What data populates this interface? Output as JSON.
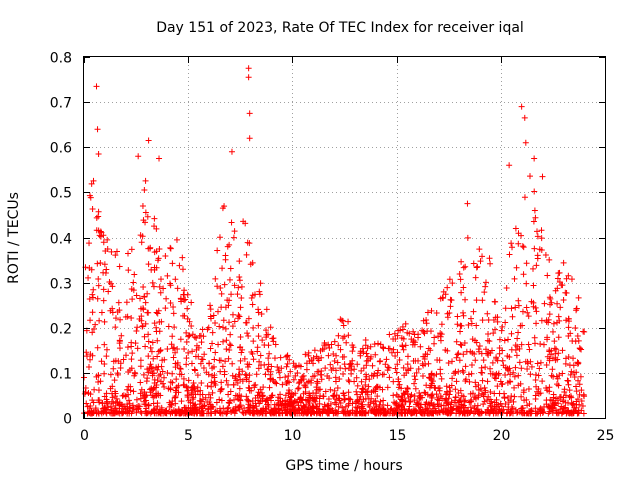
{
  "chart_data": {
    "type": "scatter",
    "title": "Day 151 of 2023, Rate Of TEC Index for receiver iqal",
    "xlabel": "GPS time / hours",
    "ylabel": "ROTI / TECUs",
    "xlim": [
      0,
      25
    ],
    "ylim": [
      0,
      0.8
    ],
    "xticks": [
      0,
      5,
      10,
      15,
      20,
      25
    ],
    "yticks": [
      0,
      0.1,
      0.2,
      0.3,
      0.4,
      0.5,
      0.6,
      0.7,
      0.8
    ],
    "xtick_labels": [
      "0",
      "5",
      "10",
      "15",
      "20",
      "25"
    ],
    "ytick_labels": [
      "0",
      "0.1",
      "0.2",
      "0.3",
      "0.4",
      "0.5",
      "0.6",
      "0.7",
      "0.8"
    ],
    "grid": true,
    "marker": "+",
    "color": "#ff0000",
    "series": [
      {
        "name": "ROTI",
        "activity_envelope": [
          {
            "x": 0.0,
            "y": 0.45
          },
          {
            "x": 0.5,
            "y": 0.55
          },
          {
            "x": 1.0,
            "y": 0.4
          },
          {
            "x": 1.5,
            "y": 0.38
          },
          {
            "x": 2.0,
            "y": 0.35
          },
          {
            "x": 2.5,
            "y": 0.45
          },
          {
            "x": 3.0,
            "y": 0.55
          },
          {
            "x": 3.5,
            "y": 0.42
          },
          {
            "x": 4.0,
            "y": 0.38
          },
          {
            "x": 4.5,
            "y": 0.42
          },
          {
            "x": 5.0,
            "y": 0.28
          },
          {
            "x": 5.5,
            "y": 0.2
          },
          {
            "x": 6.0,
            "y": 0.25
          },
          {
            "x": 6.5,
            "y": 0.45
          },
          {
            "x": 7.0,
            "y": 0.55
          },
          {
            "x": 7.5,
            "y": 0.48
          },
          {
            "x": 8.0,
            "y": 0.4
          },
          {
            "x": 8.5,
            "y": 0.3
          },
          {
            "x": 9.0,
            "y": 0.2
          },
          {
            "x": 9.5,
            "y": 0.14
          },
          {
            "x": 10.0,
            "y": 0.14
          },
          {
            "x": 11.0,
            "y": 0.15
          },
          {
            "x": 12.0,
            "y": 0.18
          },
          {
            "x": 12.5,
            "y": 0.25
          },
          {
            "x": 13.0,
            "y": 0.18
          },
          {
            "x": 14.0,
            "y": 0.17
          },
          {
            "x": 15.0,
            "y": 0.2
          },
          {
            "x": 16.0,
            "y": 0.22
          },
          {
            "x": 17.0,
            "y": 0.26
          },
          {
            "x": 18.0,
            "y": 0.35
          },
          {
            "x": 18.5,
            "y": 0.42
          },
          {
            "x": 19.0,
            "y": 0.4
          },
          {
            "x": 19.5,
            "y": 0.36
          },
          {
            "x": 20.0,
            "y": 0.18
          },
          {
            "x": 20.5,
            "y": 0.4
          },
          {
            "x": 21.0,
            "y": 0.5
          },
          {
            "x": 21.5,
            "y": 0.55
          },
          {
            "x": 22.0,
            "y": 0.45
          },
          {
            "x": 22.5,
            "y": 0.3
          },
          {
            "x": 23.0,
            "y": 0.35
          },
          {
            "x": 23.5,
            "y": 0.3
          },
          {
            "x": 24.0,
            "y": 0.25
          }
        ],
        "baseline": {
          "x_range": [
            0,
            24
          ],
          "y_min": 0.0,
          "y_typical": 0.08
        },
        "notable_points": [
          {
            "x": 0.6,
            "y": 0.735
          },
          {
            "x": 0.65,
            "y": 0.64
          },
          {
            "x": 0.7,
            "y": 0.585
          },
          {
            "x": 3.1,
            "y": 0.615
          },
          {
            "x": 3.6,
            "y": 0.575
          },
          {
            "x": 7.1,
            "y": 0.59
          },
          {
            "x": 7.9,
            "y": 0.775
          },
          {
            "x": 7.9,
            "y": 0.755
          },
          {
            "x": 7.95,
            "y": 0.675
          },
          {
            "x": 7.95,
            "y": 0.62
          },
          {
            "x": 21.0,
            "y": 0.69
          },
          {
            "x": 21.15,
            "y": 0.665
          },
          {
            "x": 21.2,
            "y": 0.61
          },
          {
            "x": 21.6,
            "y": 0.575
          },
          {
            "x": 20.4,
            "y": 0.56
          },
          {
            "x": 22.0,
            "y": 0.535
          },
          {
            "x": 2.6,
            "y": 0.58
          },
          {
            "x": 18.4,
            "y": 0.475
          }
        ]
      }
    ]
  }
}
